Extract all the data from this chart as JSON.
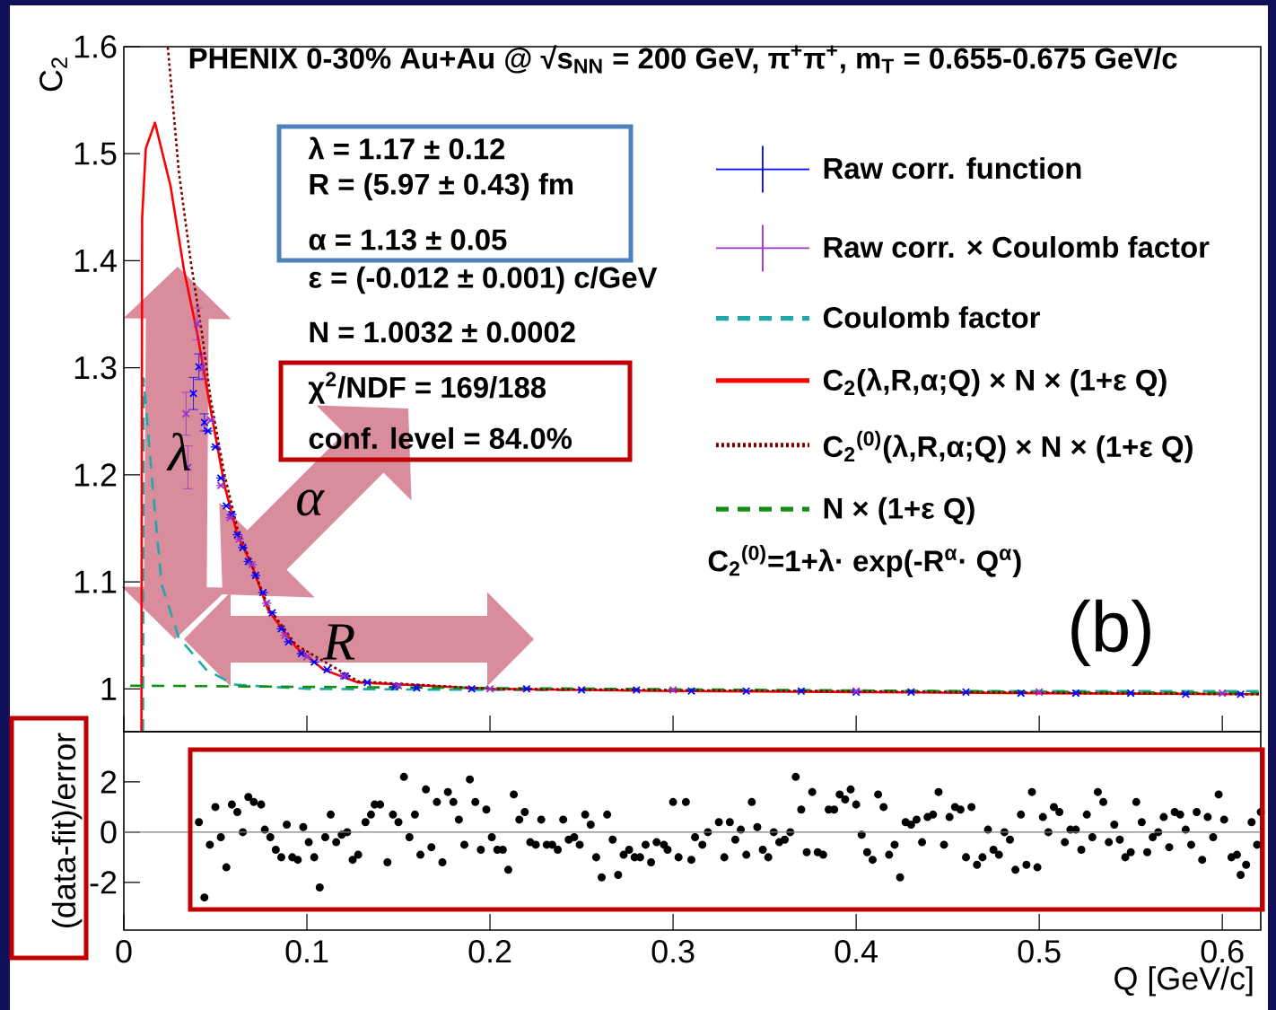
{
  "chart_data": [
    {
      "type": "line",
      "title": "PHENIX 0-30% Au+Au @ √s$_{NN}$ = 200 GeV, π$^{+}$π$^{+}$,  m$_{T}$ = 0.655-0.675 GeV/c",
      "ylabel": "C$_{2}$",
      "xlim": [
        0,
        0.621
      ],
      "ylim": [
        0.96,
        1.6
      ],
      "xticks": [
        0,
        0.1,
        0.2,
        0.3,
        0.4,
        0.5,
        0.6
      ],
      "yticks": [
        1,
        1.1,
        1.2,
        1.3,
        1.4,
        1.5,
        1.6
      ],
      "tick_labels": "y",
      "legend": "top right",
      "annotations": [
        "λ = 1.17 ± 0.12",
        "R = (5.97 ± 0.43) fm",
        "α = 1.13 ± 0.05",
        "ε = (-0.012 ± 0.001) c/GeV",
        "N = 1.0032 ± 0.0002",
        "χ$^{2}$/NDF = 169/188",
        "conf. level = 84.0%",
        "C$_{2}$$^{(0)}$=1+λ· exp(-R$^{α}$· Q$^{α}$)",
        "(b)",
        "λ",
        "α",
        "R"
      ],
      "series": [
        {
          "name": "Raw corr. function",
          "type": "scatter",
          "color": "#0000ff",
          "marker": "cross",
          "x": [
            0.038,
            0.041,
            0.044,
            0.046,
            0.05,
            0.053,
            0.056,
            0.059,
            0.062,
            0.065,
            0.068,
            0.072,
            0.076,
            0.081,
            0.086,
            0.09,
            0.097,
            0.104,
            0.111,
            0.121,
            0.133,
            0.148,
            0.16,
            0.19,
            0.22,
            0.25,
            0.28,
            0.31,
            0.34,
            0.37,
            0.4,
            0.43,
            0.46,
            0.49,
            0.52,
            0.55,
            0.58,
            0.61
          ],
          "values": [
            1.276,
            1.301,
            1.249,
            1.241,
            1.226,
            1.197,
            1.171,
            1.163,
            1.144,
            1.132,
            1.119,
            1.106,
            1.09,
            1.071,
            1.056,
            1.044,
            1.033,
            1.025,
            1.018,
            1.012,
            1.006,
            1.002,
            1.001,
            1.0,
            1.0,
            0.999,
            0.999,
            0.998,
            0.998,
            0.998,
            0.997,
            0.997,
            0.997,
            0.996,
            0.996,
            0.996,
            0.995,
            0.995
          ],
          "errors": [
            0.015,
            0.012,
            0.008,
            null,
            null,
            null,
            null,
            null,
            null,
            null,
            null,
            null,
            null,
            null,
            null,
            null,
            null,
            null,
            null,
            null,
            null,
            null,
            null,
            null,
            null,
            null,
            null,
            null,
            null,
            null,
            null,
            null,
            null,
            null,
            null,
            null,
            null,
            null
          ]
        },
        {
          "name": "Raw corr. × Coulomb factor",
          "type": "scatter",
          "color": "#9932cc",
          "marker": "cross",
          "x": [
            0.034,
            0.035,
            0.04,
            0.043,
            0.0475,
            0.053,
            0.058,
            0.063,
            0.07,
            0.078,
            0.088,
            0.1,
            0.12,
            0.15,
            0.2,
            0.3,
            0.4,
            0.5,
            0.6
          ],
          "values": [
            1.257,
            1.207,
            1.341,
            1.3,
            1.251,
            1.19,
            1.16,
            1.14,
            1.116,
            1.08,
            1.05,
            1.03,
            1.012,
            1.003,
            1.0,
            0.999,
            0.998,
            0.997,
            0.996
          ],
          "errors": [
            0.02,
            0.02,
            0.015,
            0.01,
            null,
            null,
            null,
            null,
            null,
            null,
            null,
            null,
            null,
            null,
            null,
            null,
            null,
            null,
            null
          ]
        },
        {
          "name": "Coulomb factor",
          "type": "line",
          "color": "#20a8a8",
          "marker": "none",
          "line_style": "dashed",
          "x": [
            0.0105,
            0.0108,
            0.0157,
            0.0206,
            0.03,
            0.045,
            0.06,
            0.1,
            0.2,
            0.4,
            0.62
          ],
          "values": [
            0.96,
            1.29,
            1.19,
            1.098,
            1.048,
            1.018,
            1.004,
            1.0,
            0.999,
            0.998,
            0.998
          ]
        },
        {
          "name": "C$_{2}$(λ,R,α;Q) × N × (1+ε Q)",
          "type": "line",
          "color": "#ff0000",
          "marker": "none",
          "line_style": "solid",
          "x": [
            0.0096,
            0.01,
            0.012,
            0.017,
            0.0255,
            0.033,
            0.04,
            0.0475,
            0.055,
            0.062,
            0.07,
            0.079,
            0.094,
            0.109,
            0.128,
            0.2,
            0.3,
            0.4,
            0.5,
            0.62
          ],
          "values": [
            0.96,
            1.44,
            1.505,
            1.529,
            1.47,
            1.39,
            1.333,
            1.26,
            1.19,
            1.144,
            1.115,
            1.073,
            1.039,
            1.018,
            1.006,
            1.0,
            0.998,
            0.997,
            0.996,
            0.995
          ]
        },
        {
          "name": "C$_{2}$$^{(0)}$(λ,R,α;Q) × N × (1+ε Q)",
          "type": "line",
          "color": "#800000",
          "marker": "none",
          "line_style": "dotted",
          "x": [
            0.024,
            0.03,
            0.0365,
            0.0426,
            0.0475,
            0.055,
            0.062,
            0.079,
            0.094,
            0.128,
            0.2,
            0.62
          ],
          "values": [
            1.6,
            1.484,
            1.4,
            1.333,
            1.27,
            1.2,
            1.15,
            1.076,
            1.041,
            1.007,
            1.0,
            0.995
          ]
        },
        {
          "name": "N × (1+ε Q)",
          "type": "line",
          "color": "#109010",
          "marker": "none",
          "line_style": "dashed",
          "x": [
            0.0035,
            0.62
          ],
          "values": [
            1.003,
            0.996
          ]
        }
      ]
    },
    {
      "type": "scatter",
      "xlabel": "Q [GeV/c]",
      "ylabel": "(data-fit)/error",
      "xlim": [
        0,
        0.621
      ],
      "ylim": [
        -3.9,
        4
      ],
      "xticks": [
        0,
        0.1,
        0.2,
        0.3,
        0.4,
        0.5,
        0.6
      ],
      "yticks": [
        -2,
        0,
        2
      ],
      "marker": "circle",
      "color": "#000000",
      "ref_lines": [
        {
          "axis": "y",
          "value": 0,
          "color": "#808080"
        }
      ],
      "x": [
        0.041,
        0.044,
        0.047,
        0.05,
        0.053,
        0.056,
        0.059,
        0.062,
        0.065,
        0.068,
        0.071,
        0.075,
        0.077,
        0.08,
        0.083,
        0.086,
        0.089,
        0.092,
        0.095,
        0.098,
        0.101,
        0.104,
        0.107,
        0.11,
        0.113,
        0.116,
        0.119,
        0.122,
        0.125,
        0.128,
        0.132,
        0.135,
        0.137,
        0.14,
        0.144,
        0.147,
        0.15,
        0.153,
        0.156,
        0.159,
        0.162,
        0.165,
        0.168,
        0.171,
        0.174,
        0.177,
        0.18,
        0.183,
        0.186,
        0.189,
        0.192,
        0.195,
        0.198,
        0.201,
        0.204,
        0.207,
        0.21,
        0.213,
        0.216,
        0.219,
        0.222,
        0.225,
        0.228,
        0.231,
        0.234,
        0.237,
        0.24,
        0.243,
        0.246,
        0.249,
        0.252,
        0.255,
        0.258,
        0.261,
        0.264,
        0.267,
        0.27,
        0.273,
        0.276,
        0.279,
        0.282,
        0.285,
        0.288,
        0.291,
        0.295,
        0.297,
        0.3,
        0.303,
        0.307,
        0.31,
        0.312,
        0.316,
        0.319,
        0.325,
        0.328,
        0.331,
        0.334,
        0.337,
        0.34,
        0.343,
        0.346,
        0.349,
        0.352,
        0.355,
        0.358,
        0.361,
        0.364,
        0.367,
        0.37,
        0.373,
        0.376,
        0.379,
        0.382,
        0.385,
        0.388,
        0.391,
        0.394,
        0.397,
        0.4,
        0.403,
        0.406,
        0.409,
        0.412,
        0.415,
        0.418,
        0.421,
        0.424,
        0.427,
        0.43,
        0.433,
        0.436,
        0.439,
        0.442,
        0.445,
        0.448,
        0.451,
        0.454,
        0.457,
        0.46,
        0.463,
        0.466,
        0.469,
        0.472,
        0.475,
        0.478,
        0.481,
        0.484,
        0.487,
        0.49,
        0.493,
        0.496,
        0.499,
        0.502,
        0.505,
        0.508,
        0.511,
        0.514,
        0.517,
        0.52,
        0.523,
        0.526,
        0.529,
        0.532,
        0.535,
        0.538,
        0.541,
        0.544,
        0.547,
        0.55,
        0.553,
        0.556,
        0.559,
        0.562,
        0.565,
        0.568,
        0.571,
        0.574,
        0.577,
        0.58,
        0.583,
        0.586,
        0.589,
        0.592,
        0.595,
        0.598,
        0.601,
        0.605,
        0.608,
        0.61,
        0.613,
        0.616,
        0.619,
        0.621
      ],
      "values": [
        0.4,
        -2.6,
        -0.5,
        1.0,
        -0.2,
        -1.4,
        1.1,
        0.8,
        0.0,
        1.4,
        1.2,
        1.1,
        0.1,
        -0.2,
        -0.7,
        -1.0,
        0.3,
        -1.0,
        -1.1,
        0.2,
        -0.4,
        -1.0,
        -2.2,
        -0.2,
        0.7,
        -0.4,
        -0.1,
        0.0,
        -1.1,
        -0.9,
        0.4,
        0.7,
        1.1,
        1.1,
        -1.2,
        0.7,
        0.4,
        2.2,
        -0.2,
        0.7,
        -0.9,
        1.7,
        -0.6,
        1.2,
        -1.2,
        1.6,
        1.2,
        0.5,
        -0.5,
        2.1,
        1.2,
        -0.7,
        0.9,
        -0.2,
        -0.7,
        -0.7,
        -1.5,
        1.5,
        0.5,
        0.8,
        -0.4,
        -0.5,
        0.5,
        -0.5,
        -0.5,
        -0.7,
        0.5,
        -0.3,
        -0.2,
        -0.5,
        0.7,
        0.3,
        -1.0,
        -1.8,
        0.7,
        -0.3,
        -1.7,
        -0.9,
        -0.7,
        -1.0,
        -1.0,
        -0.5,
        -1.2,
        -0.4,
        -0.5,
        -0.7,
        1.2,
        -1.0,
        1.2,
        -1.1,
        -0.2,
        -0.5,
        0.0,
        0.4,
        -1.0,
        0.4,
        -0.3,
        0.1,
        -0.9,
        1.2,
        0.2,
        -0.7,
        -1.0,
        0.0,
        -0.4,
        -0.3,
        0.0,
        2.2,
        0.9,
        -0.8,
        1.6,
        -0.8,
        -0.9,
        0.9,
        0.9,
        1.5,
        1.3,
        1.7,
        1.1,
        -0.1,
        -0.8,
        -1.1,
        1.5,
        1.0,
        -0.9,
        -0.5,
        -1.8,
        0.4,
        0.3,
        0.5,
        -0.4,
        0.6,
        0.7,
        1.6,
        -0.5,
        0.6,
        1.0,
        0.9,
        -1.0,
        1.0,
        -1.3,
        -1.0,
        0.1,
        -0.7,
        -0.9,
        0.0,
        -0.3,
        -1.5,
        0.7,
        -1.3,
        1.6,
        -1.4,
        0.6,
        0.0,
        1.0,
        0.8,
        -0.4,
        0.1,
        0.1,
        -0.7,
        0.7,
        -0.2,
        1.6,
        1.2,
        -0.4,
        0.3,
        -0.3,
        -1.0,
        -0.8,
        1.2,
        0.4,
        -0.8,
        -0.2,
        0.0,
        0.6,
        -0.6,
        0.8,
        0.7,
        0.1,
        -0.5,
        0.8,
        -1.1,
        0.6,
        -0.2,
        1.5,
        0.5,
        -1.0,
        -0.9,
        -1.7,
        -1.3,
        0.4,
        -0.5,
        0.8
      ]
    }
  ]
}
